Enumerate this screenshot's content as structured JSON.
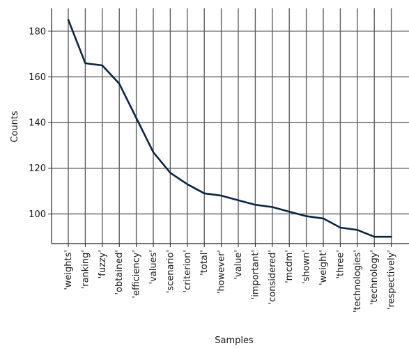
{
  "chart_data": {
    "type": "line",
    "title": "",
    "xlabel": "Samples",
    "ylabel": "Counts",
    "categories": [
      "'weights'",
      "'ranking'",
      "'fuzzy'",
      "'obtained'",
      "'efficiency'",
      "'values'",
      "'scenario'",
      "'criterion'",
      "'total'",
      "'however'",
      "'value'",
      "'important'",
      "'considered'",
      "'mcdm'",
      "'shown'",
      "'weight'",
      "'three'",
      "'technologies'",
      "'technology'",
      "'respectively'"
    ],
    "series": [
      {
        "values": [
          185,
          166,
          165,
          157,
          142,
          127,
          118,
          113,
          109,
          108,
          106,
          104,
          103,
          101,
          99,
          98,
          94,
          93,
          90,
          90
        ]
      }
    ],
    "ylim": [
      87,
      190
    ],
    "yticks": [
      100,
      120,
      140,
      160,
      180
    ],
    "grid": true,
    "legend": "none"
  },
  "colors": {
    "line": "#0b2545",
    "grid": "#5f5f5f",
    "axis": "#222222"
  }
}
